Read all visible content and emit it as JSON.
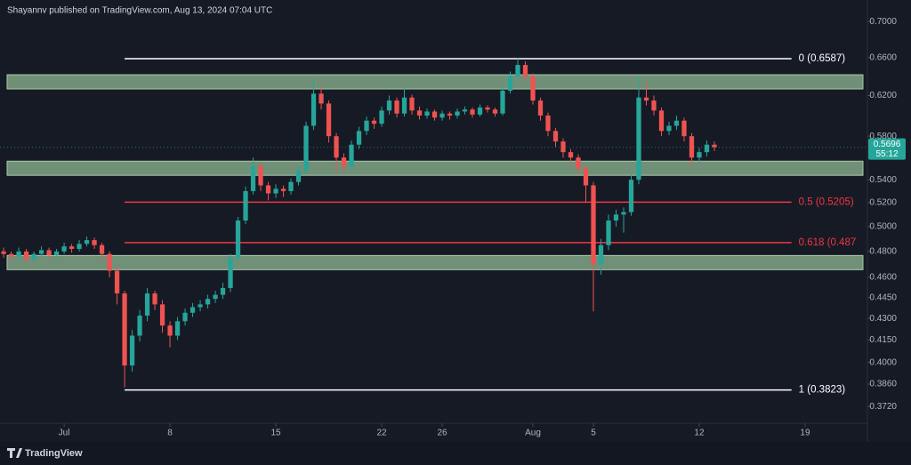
{
  "header": {
    "text": "Shayannv published on TradingView.com, Aug 13, 2024 07:04 UTC"
  },
  "footer": {
    "brand": "TradingView"
  },
  "chart_data": {
    "type": "candlestick",
    "log_scale": true,
    "grid": false,
    "up_color": "#26a69a",
    "down_color": "#ef5350",
    "xlim": [
      -3.24,
      54.12
    ],
    "xticks": [
      {
        "value": 1,
        "label": "Jul"
      },
      8,
      15,
      22,
      26,
      {
        "value": 32,
        "label": "Aug"
      },
      {
        "value": 36,
        "label": "5"
      },
      {
        "value": 43,
        "label": "12"
      },
      {
        "value": 50,
        "label": "19"
      }
    ],
    "ylim": [
      0.362,
      0.7254
    ],
    "yticks": [
      {
        "value": 0.7,
        "label": "0.7000"
      },
      {
        "value": 0.66,
        "label": "0.6600"
      },
      {
        "value": 0.62,
        "label": "0.6200"
      },
      {
        "value": 0.58,
        "label": "0.5800"
      },
      {
        "value": 0.54,
        "label": "0.5400"
      },
      {
        "value": 0.52,
        "label": "0.5200"
      },
      {
        "value": 0.5,
        "label": "0.5000"
      },
      {
        "value": 0.48,
        "label": "0.4800"
      },
      {
        "value": 0.46,
        "label": "0.4600"
      },
      {
        "value": 0.445,
        "label": "0.4450"
      },
      {
        "value": 0.43,
        "label": "0.4300"
      },
      {
        "value": 0.415,
        "label": "0.4150"
      },
      {
        "value": 0.4,
        "label": "0.4000"
      },
      {
        "value": 0.386,
        "label": "0.3860"
      },
      {
        "value": 0.372,
        "label": "0.3720"
      }
    ],
    "x": [
      -3,
      -2.5,
      -2,
      -1.5,
      -1,
      -0.5,
      0,
      0.5,
      1,
      1.5,
      2,
      2.5,
      3,
      3.5,
      4,
      4.5,
      5,
      5.5,
      6,
      6.5,
      7,
      7.5,
      8,
      8.5,
      9,
      9.5,
      10,
      10.5,
      11,
      11.5,
      12,
      12.5,
      13,
      13.5,
      14,
      14.5,
      15,
      15.5,
      16,
      16.5,
      17,
      17.5,
      18,
      18.5,
      19,
      19.5,
      20,
      20.5,
      21,
      21.5,
      22,
      22.5,
      23,
      23.5,
      24,
      24.5,
      25,
      25.5,
      26,
      26.5,
      27,
      27.5,
      28,
      28.5,
      29,
      29.5,
      30,
      30.5,
      31,
      31.5,
      32,
      32.5,
      33,
      33.5,
      34,
      34.5,
      35,
      35.5,
      36,
      36.5,
      37,
      37.5,
      38,
      38.5,
      39,
      39.5,
      40,
      40.5,
      41,
      41.5,
      42,
      42.5,
      43,
      43.5,
      44
    ],
    "open": [
      0.48,
      0.478,
      0.476,
      0.48,
      0.474,
      0.478,
      0.481,
      0.477,
      0.48,
      0.484,
      0.482,
      0.486,
      0.489,
      0.485,
      0.478,
      0.465,
      0.448,
      0.398,
      0.418,
      0.432,
      0.448,
      0.44,
      0.425,
      0.418,
      0.428,
      0.434,
      0.438,
      0.44,
      0.444,
      0.447,
      0.452,
      0.475,
      0.505,
      0.53,
      0.552,
      0.535,
      0.528,
      0.532,
      0.53,
      0.538,
      0.548,
      0.59,
      0.622,
      0.612,
      0.58,
      0.56,
      0.552,
      0.572,
      0.585,
      0.595,
      0.592,
      0.605,
      0.615,
      0.602,
      0.618,
      0.605,
      0.6,
      0.604,
      0.598,
      0.602,
      0.6,
      0.604,
      0.606,
      0.601,
      0.608,
      0.606,
      0.602,
      0.625,
      0.64,
      0.652,
      0.64,
      0.615,
      0.6,
      0.585,
      0.575,
      0.565,
      0.56,
      0.55,
      0.535,
      0.47,
      0.485,
      0.505,
      0.51,
      0.512,
      0.54,
      0.618,
      0.615,
      0.605,
      0.585,
      0.59,
      0.595,
      0.58,
      0.56,
      0.565,
      0.572
    ],
    "high": [
      0.483,
      0.48,
      0.483,
      0.482,
      0.48,
      0.484,
      0.483,
      0.482,
      0.487,
      0.486,
      0.489,
      0.492,
      0.491,
      0.487,
      0.48,
      0.468,
      0.45,
      0.422,
      0.436,
      0.452,
      0.45,
      0.443,
      0.428,
      0.431,
      0.437,
      0.441,
      0.443,
      0.447,
      0.45,
      0.456,
      0.478,
      0.508,
      0.534,
      0.56,
      0.555,
      0.538,
      0.536,
      0.535,
      0.541,
      0.552,
      0.594,
      0.637,
      0.63,
      0.615,
      0.583,
      0.564,
      0.576,
      0.589,
      0.599,
      0.598,
      0.609,
      0.62,
      0.618,
      0.628,
      0.621,
      0.609,
      0.607,
      0.606,
      0.605,
      0.604,
      0.607,
      0.609,
      0.608,
      0.611,
      0.61,
      0.608,
      0.629,
      0.645,
      0.659,
      0.656,
      0.643,
      0.618,
      0.603,
      0.588,
      0.578,
      0.568,
      0.563,
      0.553,
      0.538,
      0.49,
      0.51,
      0.514,
      0.516,
      0.545,
      0.64,
      0.632,
      0.62,
      0.608,
      0.594,
      0.6,
      0.598,
      0.583,
      0.569,
      0.576,
      0.575
    ],
    "low": [
      0.475,
      0.473,
      0.474,
      0.471,
      0.472,
      0.476,
      0.475,
      0.475,
      0.478,
      0.479,
      0.48,
      0.484,
      0.482,
      0.474,
      0.46,
      0.44,
      0.384,
      0.394,
      0.414,
      0.428,
      0.436,
      0.42,
      0.41,
      0.415,
      0.425,
      0.431,
      0.435,
      0.437,
      0.441,
      0.444,
      0.449,
      0.472,
      0.502,
      0.527,
      0.53,
      0.522,
      0.524,
      0.525,
      0.527,
      0.535,
      0.545,
      0.586,
      0.606,
      0.574,
      0.545,
      0.546,
      0.549,
      0.568,
      0.581,
      0.587,
      0.589,
      0.601,
      0.598,
      0.599,
      0.601,
      0.596,
      0.597,
      0.595,
      0.595,
      0.596,
      0.597,
      0.601,
      0.598,
      0.599,
      0.603,
      0.599,
      0.6,
      0.622,
      0.637,
      0.636,
      0.611,
      0.595,
      0.58,
      0.57,
      0.56,
      0.554,
      0.545,
      0.52,
      0.435,
      0.462,
      0.481,
      0.5,
      0.495,
      0.509,
      0.536,
      0.61,
      0.6,
      0.58,
      0.581,
      0.586,
      0.575,
      0.552,
      0.556,
      0.561,
      0.566
    ],
    "close": [
      0.478,
      0.476,
      0.48,
      0.474,
      0.478,
      0.481,
      0.477,
      0.48,
      0.484,
      0.482,
      0.486,
      0.489,
      0.485,
      0.478,
      0.465,
      0.448,
      0.398,
      0.418,
      0.432,
      0.448,
      0.44,
      0.425,
      0.418,
      0.428,
      0.434,
      0.438,
      0.44,
      0.444,
      0.447,
      0.452,
      0.475,
      0.505,
      0.53,
      0.552,
      0.535,
      0.528,
      0.532,
      0.53,
      0.538,
      0.548,
      0.59,
      0.622,
      0.612,
      0.58,
      0.56,
      0.552,
      0.572,
      0.585,
      0.595,
      0.592,
      0.605,
      0.615,
      0.602,
      0.618,
      0.605,
      0.6,
      0.604,
      0.598,
      0.602,
      0.6,
      0.604,
      0.606,
      0.601,
      0.608,
      0.606,
      0.602,
      0.625,
      0.64,
      0.652,
      0.64,
      0.615,
      0.6,
      0.585,
      0.575,
      0.565,
      0.56,
      0.55,
      0.535,
      0.47,
      0.485,
      0.505,
      0.51,
      0.512,
      0.54,
      0.618,
      0.615,
      0.605,
      0.585,
      0.59,
      0.595,
      0.58,
      0.56,
      0.565,
      0.572,
      0.5696
    ],
    "zones": [
      {
        "low": 0.6268,
        "high": 0.6416
      },
      {
        "low": 0.5439,
        "high": 0.5567
      },
      {
        "low": 0.4658,
        "high": 0.4768
      }
    ],
    "zone_color": "#8fb894",
    "fib_start_x": 5,
    "fib_end_x": 49.1,
    "fib_levels": [
      {
        "value": 0.6587,
        "label": "0 (0.6587)",
        "color": "#ffffff"
      },
      {
        "value": 0.5205,
        "label": "0.5 (0.5205)",
        "color": "#f23645"
      },
      {
        "value": 0.487,
        "label": "0.618 (0.487",
        "color": "#f23645"
      },
      {
        "value": 0.3823,
        "label": "1 (0.3823)",
        "color": "#ffffff"
      }
    ],
    "last_price": 0.5696,
    "countdown": "55:12"
  }
}
